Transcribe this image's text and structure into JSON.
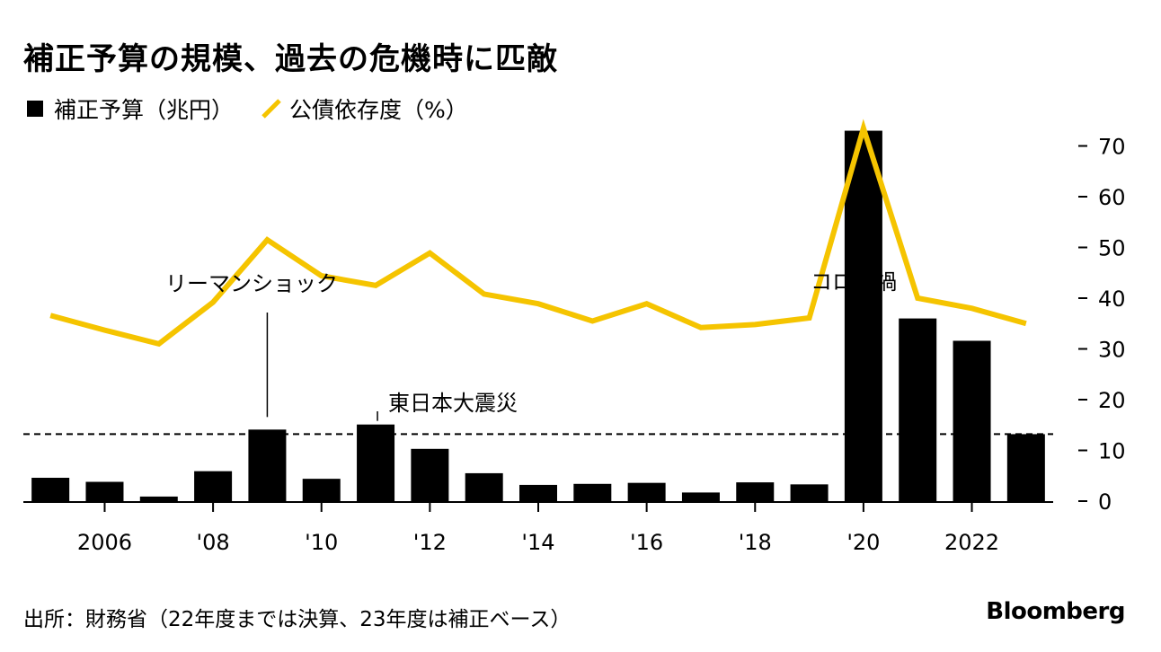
{
  "title": "補正予算の規模、過去の危機時に匹敵",
  "legend": {
    "bar": "補正予算（兆円）",
    "line": "公債依存度（%）"
  },
  "source": "出所：財務省（22年度までは決算、23年度は補正ベース）",
  "brand": "Bloomberg",
  "colors": {
    "bar": "#000000",
    "line": "#f5c400",
    "text": "#000000"
  },
  "chart_data": {
    "type": "bar+line",
    "x": [
      2005,
      2006,
      2007,
      2008,
      2009,
      2010,
      2011,
      2012,
      2013,
      2014,
      2015,
      2016,
      2017,
      2018,
      2019,
      2020,
      2021,
      2022,
      2023
    ],
    "series": [
      {
        "name": "補正予算（兆円）",
        "type": "bar",
        "values": [
          4.6,
          3.8,
          0.9,
          5.9,
          14.1,
          4.4,
          15.1,
          10.3,
          5.5,
          3.2,
          3.4,
          3.6,
          1.7,
          3.7,
          3.3,
          73.0,
          36.0,
          31.6,
          13.2
        ]
      },
      {
        "name": "公債依存度（%）",
        "type": "line",
        "values": [
          36.6,
          33.7,
          31.0,
          39.2,
          51.5,
          44.4,
          42.5,
          48.9,
          40.8,
          38.9,
          35.5,
          38.9,
          34.2,
          34.8,
          36.1,
          73.5,
          40.0,
          38.0,
          35.0
        ]
      }
    ],
    "x_tick_labels": [
      {
        "x": 2006,
        "label": "2006"
      },
      {
        "x": 2008,
        "label": "'08"
      },
      {
        "x": 2010,
        "label": "'10"
      },
      {
        "x": 2012,
        "label": "'12"
      },
      {
        "x": 2014,
        "label": "'14"
      },
      {
        "x": 2016,
        "label": "'16"
      },
      {
        "x": 2018,
        "label": "'18"
      },
      {
        "x": 2020,
        "label": "'20"
      },
      {
        "x": 2022,
        "label": "2022"
      }
    ],
    "y_ticks": [
      0,
      10,
      20,
      30,
      40,
      50,
      60,
      70
    ],
    "ylim": [
      0,
      74
    ],
    "reference_line": {
      "y": 13.2,
      "style": "dashed"
    },
    "annotations": [
      {
        "text": "リーマンショック",
        "x": 2009,
        "y": 14.1,
        "leader": true
      },
      {
        "text": "東日本大震災",
        "x": 2011,
        "y": 15.1,
        "leader": true
      },
      {
        "text": "コロナ禍",
        "x": 2020,
        "y": 40,
        "leader": false
      }
    ],
    "xlabel": "",
    "ylabel": "",
    "grid": false,
    "legend_position": "top-left"
  }
}
